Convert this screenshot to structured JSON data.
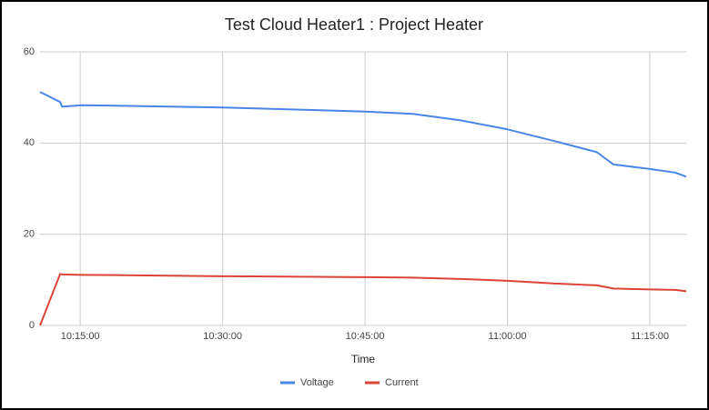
{
  "chart_data": {
    "type": "line",
    "title": "Test Cloud Heater1 : Project Heater",
    "x_label": "Time",
    "x": [
      "10:10:46",
      "10:12:53",
      "10:13:05",
      "10:15:12",
      "10:30:00",
      "10:45:00",
      "10:50:00",
      "10:55:00",
      "11:00:00",
      "11:05:00",
      "11:09:25",
      "11:11:10",
      "11:15:00",
      "11:17:42",
      "11:18:50"
    ],
    "series": [
      {
        "name": "Voltage",
        "color": "#4a86e8",
        "values": [
          51.2,
          49,
          48,
          48.3,
          47.8,
          46.9,
          46.4,
          45,
          43,
          40.4,
          38,
          35.3,
          34.3,
          33.5,
          32.6
        ]
      },
      {
        "name": "Current",
        "color": "#db4437",
        "values": [
          0,
          11.3,
          11.2,
          11.1,
          10.8,
          10.6,
          10.5,
          10.2,
          9.8,
          9.2,
          8.8,
          8.1,
          7.9,
          7.8,
          7.5
        ]
      }
    ],
    "xlim": [
      "10:10:46",
      "11:18:50"
    ],
    "xticks": [
      "10:15:00",
      "10:30:00",
      "10:45:00",
      "11:00:00",
      "11:15:00"
    ],
    "ylim": [
      0,
      60
    ],
    "yticks": [
      0,
      20,
      40,
      60
    ],
    "grid": true,
    "legend": "bottom"
  }
}
